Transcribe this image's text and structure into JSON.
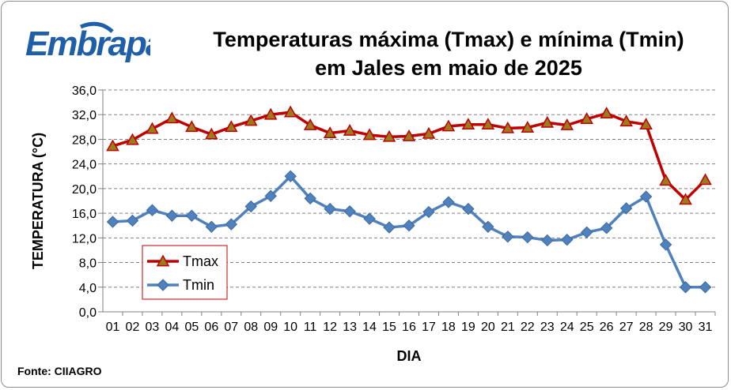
{
  "header": {
    "logo_text": "Embrapa",
    "title_line1": "Temperaturas máxima (Tmax) e mínima (Tmin)",
    "title_line2": "em Jales em maio de 2025"
  },
  "footer": {
    "source": "Fonte: CIIAGRO"
  },
  "colors": {
    "tmax": "#c00000",
    "tmax_marker": "#9c7a1e",
    "tmin": "#4f81bd",
    "logo": "#1f5fa8"
  },
  "chart_data": {
    "type": "line",
    "xlabel": "DIA",
    "ylabel": "TEMPERATURA (°C)",
    "ylim": [
      0,
      36
    ],
    "yticks": [
      "0,0",
      "4,0",
      "8,0",
      "12,0",
      "16,0",
      "20,0",
      "24,0",
      "28,0",
      "32,0",
      "36,0"
    ],
    "categories": [
      "01",
      "02",
      "03",
      "04",
      "05",
      "06",
      "07",
      "08",
      "09",
      "10",
      "11",
      "12",
      "13",
      "14",
      "15",
      "16",
      "17",
      "18",
      "19",
      "20",
      "21",
      "22",
      "23",
      "24",
      "25",
      "26",
      "27",
      "28",
      "29",
      "30",
      "31"
    ],
    "grid": "horizontal dashed",
    "legend_position": "bottom-left",
    "series": [
      {
        "name": "Tmax",
        "marker": "triangle",
        "values": [
          26.9,
          27.9,
          29.7,
          31.4,
          30.0,
          28.8,
          30.0,
          31.0,
          32.0,
          32.4,
          30.3,
          29.0,
          29.4,
          28.7,
          28.4,
          28.5,
          28.9,
          30.1,
          30.4,
          30.4,
          29.8,
          29.9,
          30.7,
          30.3,
          31.3,
          32.2,
          30.9,
          30.4,
          21.3,
          18.2,
          21.4
        ]
      },
      {
        "name": "Tmin",
        "marker": "diamond",
        "values": [
          14.6,
          14.8,
          16.5,
          15.6,
          15.6,
          13.8,
          14.2,
          17.1,
          18.8,
          22.0,
          18.4,
          16.7,
          16.3,
          15.1,
          13.7,
          14.0,
          16.2,
          17.8,
          16.7,
          13.8,
          12.2,
          12.1,
          11.6,
          11.7,
          12.9,
          13.6,
          16.8,
          18.7,
          10.9,
          4.0,
          4.0
        ]
      }
    ]
  }
}
